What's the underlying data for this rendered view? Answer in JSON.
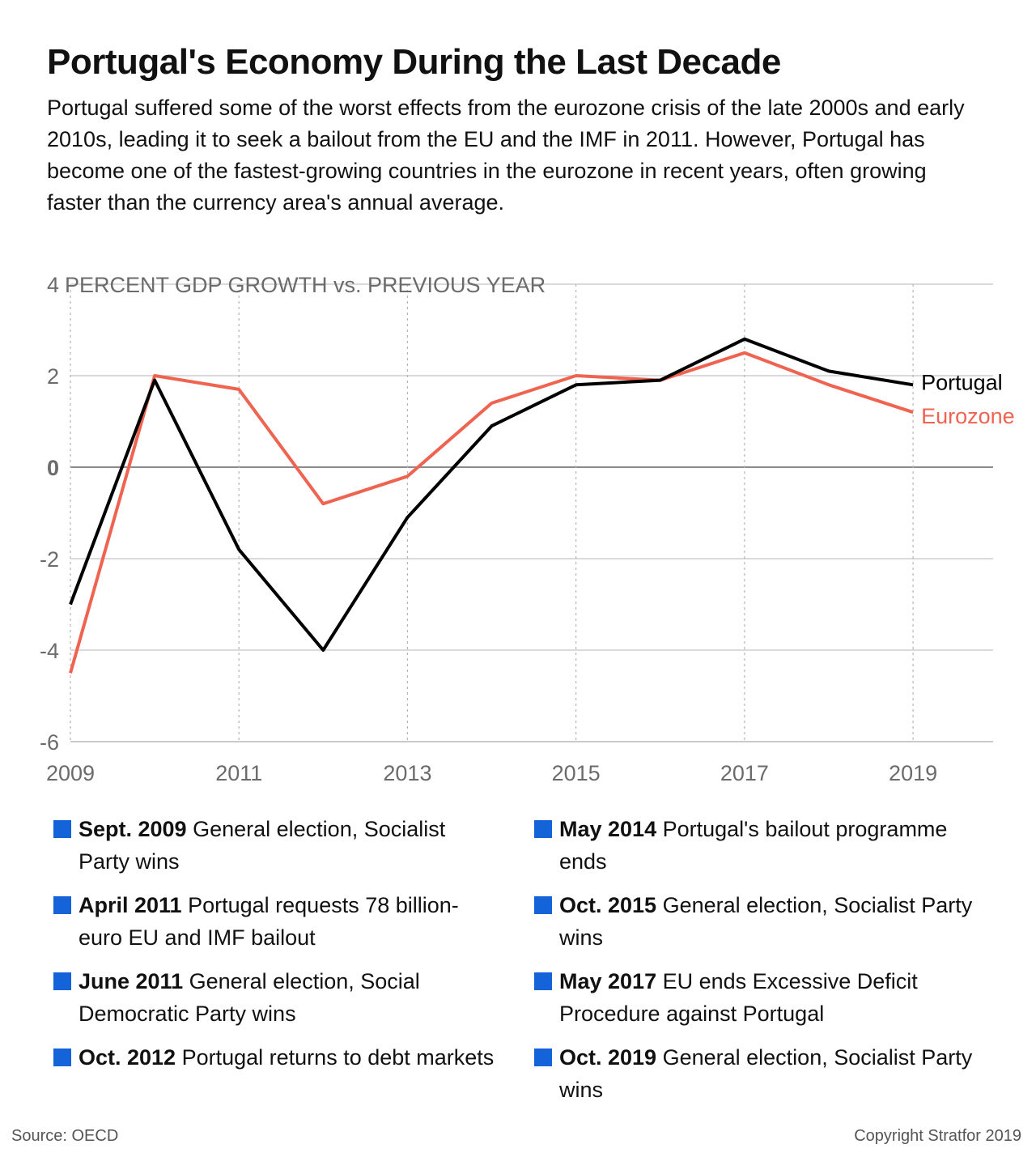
{
  "title": "Portugal's Economy During the Last Decade",
  "subtitle": "Portugal suffered some of the worst effects from the eurozone crisis of the late 2000s and early 2010s, leading it to seek a bailout from the EU and the IMF in 2011. However, Portugal has become one of the fastest-growing countries in the eurozone in recent years, often growing faster than the currency area's annual average.",
  "chart_data": {
    "type": "line",
    "ylabel": "PERCENT GDP GROWTH vs. PREVIOUS YEAR",
    "x": [
      2009,
      2010,
      2011,
      2012,
      2013,
      2014,
      2015,
      2016,
      2017,
      2018,
      2019
    ],
    "xticks": [
      "2009",
      "2011",
      "2013",
      "2015",
      "2017",
      "2019"
    ],
    "yticks": [
      "4",
      "2",
      "0",
      "-2",
      "-4",
      "-6"
    ],
    "ylim": [
      -6,
      4
    ],
    "xlim": [
      2009,
      2019.95
    ],
    "grid": true,
    "legend": "line-end labels",
    "series": [
      {
        "name": "Portugal",
        "color": "#000000",
        "values": [
          -3.0,
          1.9,
          -1.8,
          -4.0,
          -1.1,
          0.9,
          1.8,
          1.9,
          2.8,
          2.1,
          1.8
        ]
      },
      {
        "name": "Eurozone",
        "color": "#ef6351",
        "values": [
          -4.5,
          2.0,
          1.7,
          -0.8,
          -0.2,
          1.4,
          2.0,
          1.9,
          2.5,
          1.8,
          1.2
        ]
      }
    ]
  },
  "events": [
    {
      "date": "Sept. 2009",
      "text": "General election, Socialist Party wins"
    },
    {
      "date": "May 2014",
      "text": "Portugal's bailout programme ends"
    },
    {
      "date": "April 2011",
      "text": "Portugal requests 78 billion-euro EU and IMF bailout"
    },
    {
      "date": "Oct. 2015",
      "text": "General election, Socialist Party wins"
    },
    {
      "date": "June 2011",
      "text": "General election, Social Democratic Party wins"
    },
    {
      "date": "May 2017",
      "text": "EU ends Excessive Deficit Procedure against Portugal"
    },
    {
      "date": "Oct. 2012",
      "text": "Portugal returns to debt markets"
    },
    {
      "date": "Oct. 2019",
      "text": "General election, Socialist Party wins"
    }
  ],
  "event_marker_color": "#1463d8",
  "footer": {
    "source": "Source: OECD",
    "copyright": "Copyright Stratfor 2019"
  }
}
